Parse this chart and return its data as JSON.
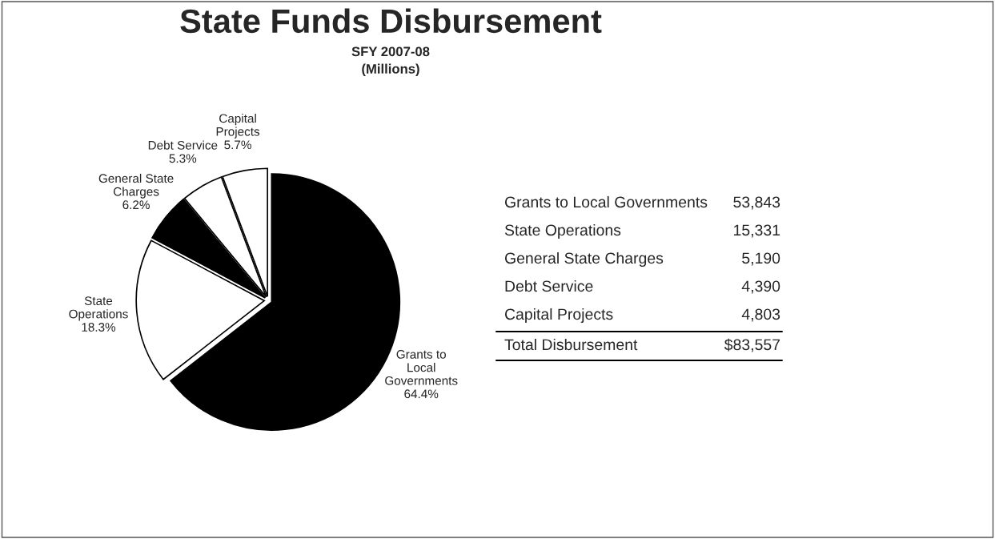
{
  "chart_data": {
    "type": "pie",
    "title": "State Funds Disbursement",
    "subtitle": "SFY 2007-08\n(Millions)",
    "categories": [
      "Grants to Local Governments",
      "State Operations",
      "General State Charges",
      "Debt Service",
      "Capital Projects"
    ],
    "values": [
      64.4,
      18.3,
      6.2,
      5.3,
      5.7
    ],
    "colors": [
      "#000000",
      "#ffffff",
      "#000000",
      "#ffffff",
      "#ffffff"
    ],
    "value_labels": [
      "64.4%",
      "18.3%",
      "6.2%",
      "5.3%",
      "5.7%"
    ],
    "annotations": [
      "53,843",
      "15,331",
      "5,190",
      "4,390",
      "4,803",
      "Total Disbursement",
      "$83,557"
    ],
    "legend": false
  }
}
